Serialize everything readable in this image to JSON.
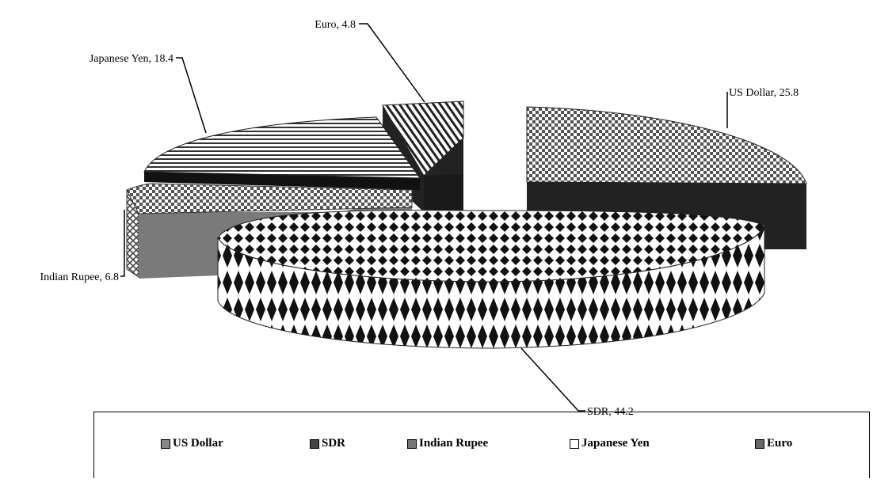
{
  "chart_data": {
    "type": "pie",
    "title": "",
    "slices": [
      {
        "name": "US Dollar",
        "value": 25.8,
        "label": "US Dollar, 25.8"
      },
      {
        "name": "SDR",
        "value": 44.2,
        "label": "SDR, 44.2"
      },
      {
        "name": "Indian Rupee",
        "value": 6.8,
        "label": "Indian Rupee, 6.8"
      },
      {
        "name": "Japanese Yen",
        "value": 18.4,
        "label": "Japanese  Yen, 18.4"
      },
      {
        "name": "Euro",
        "value": 4.8,
        "label": "Euro, 4.8"
      }
    ],
    "legend": {
      "position": "bottom",
      "entries": [
        "US Dollar",
        "SDR",
        "Indian Rupee",
        "Japanese  Yen",
        "Euro"
      ]
    },
    "style": "3d-exploded",
    "colors": {
      "side": "#222222",
      "pattern_fg": "#444444",
      "pattern_bg": "#ffffff",
      "sdr_fg": "#111111"
    }
  }
}
